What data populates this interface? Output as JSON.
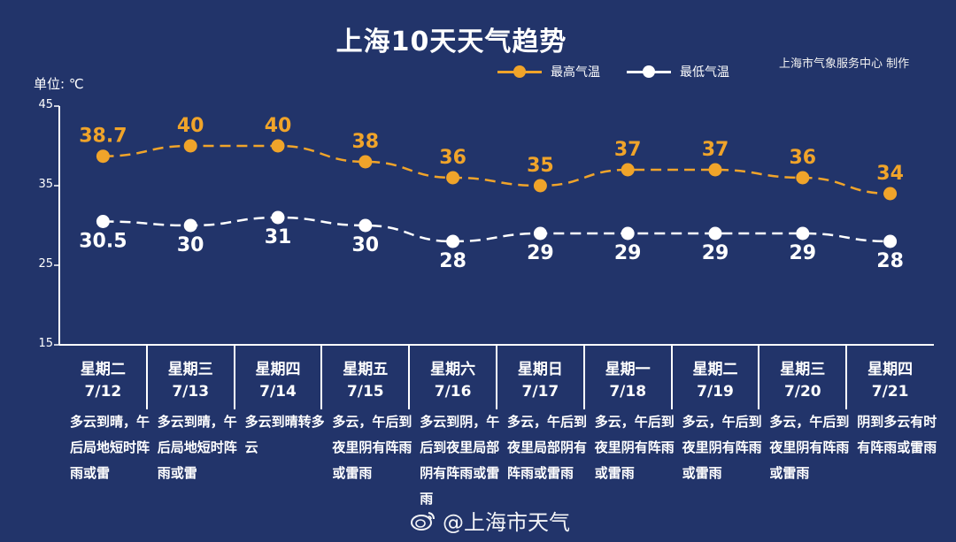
{
  "title": "上海10天天气趋势",
  "unit_label": "单位: ℃",
  "credit": "上海市气象服务中心 制作",
  "watermark": "@上海市天气",
  "colors": {
    "background": "#22346a",
    "high": "#f0a42a",
    "low": "#ffffff"
  },
  "legend": {
    "high": "最高气温",
    "low": "最低气温"
  },
  "days": [
    {
      "weekday": "星期二",
      "date": "7/12",
      "desc": "多云到晴，午后局地短时阵雨或雷"
    },
    {
      "weekday": "星期三",
      "date": "7/13",
      "desc": "多云到晴，午后局地短时阵雨或雷"
    },
    {
      "weekday": "星期四",
      "date": "7/14",
      "desc": "多云到晴转多云"
    },
    {
      "weekday": "星期五",
      "date": "7/15",
      "desc": "多云，午后到夜里阴有阵雨或雷雨"
    },
    {
      "weekday": "星期六",
      "date": "7/16",
      "desc": "多云到阴，午后到夜里局部阴有阵雨或雷雨"
    },
    {
      "weekday": "星期日",
      "date": "7/17",
      "desc": "多云，午后到夜里局部阴有阵雨或雷雨"
    },
    {
      "weekday": "星期一",
      "date": "7/18",
      "desc": "多云，午后到夜里阴有阵雨或雷雨"
    },
    {
      "weekday": "星期二",
      "date": "7/19",
      "desc": "多云，午后到夜里阴有阵雨或雷雨"
    },
    {
      "weekday": "星期三",
      "date": "7/20",
      "desc": "多云，午后到夜里阴有阵雨或雷雨"
    },
    {
      "weekday": "星期四",
      "date": "7/21",
      "desc": "阴到多云有时有阵雨或雷雨"
    }
  ],
  "chart_data": {
    "type": "line",
    "title": "上海10天天气趋势",
    "ylabel": "单位: ℃",
    "ylim": [
      15,
      45
    ],
    "yticks": [
      15,
      25,
      35,
      45
    ],
    "categories": [
      "7/12",
      "7/13",
      "7/14",
      "7/15",
      "7/16",
      "7/17",
      "7/18",
      "7/19",
      "7/20",
      "7/21"
    ],
    "series": [
      {
        "name": "最高气温",
        "values": [
          38.7,
          40,
          40,
          38,
          36,
          35,
          37,
          37,
          36,
          34
        ],
        "labels": [
          "38.7",
          "40",
          "40",
          "38",
          "36",
          "35",
          "37",
          "37",
          "36",
          "34"
        ],
        "color": "#f0a42a"
      },
      {
        "name": "最低气温",
        "values": [
          30.5,
          30,
          31,
          30,
          28,
          29,
          29,
          29,
          29,
          28
        ],
        "labels": [
          "30.5",
          "30",
          "31",
          "30",
          "28",
          "29",
          "29",
          "29",
          "29",
          "28"
        ],
        "color": "#ffffff"
      }
    ],
    "grid": false,
    "legend_position": "top-right"
  }
}
